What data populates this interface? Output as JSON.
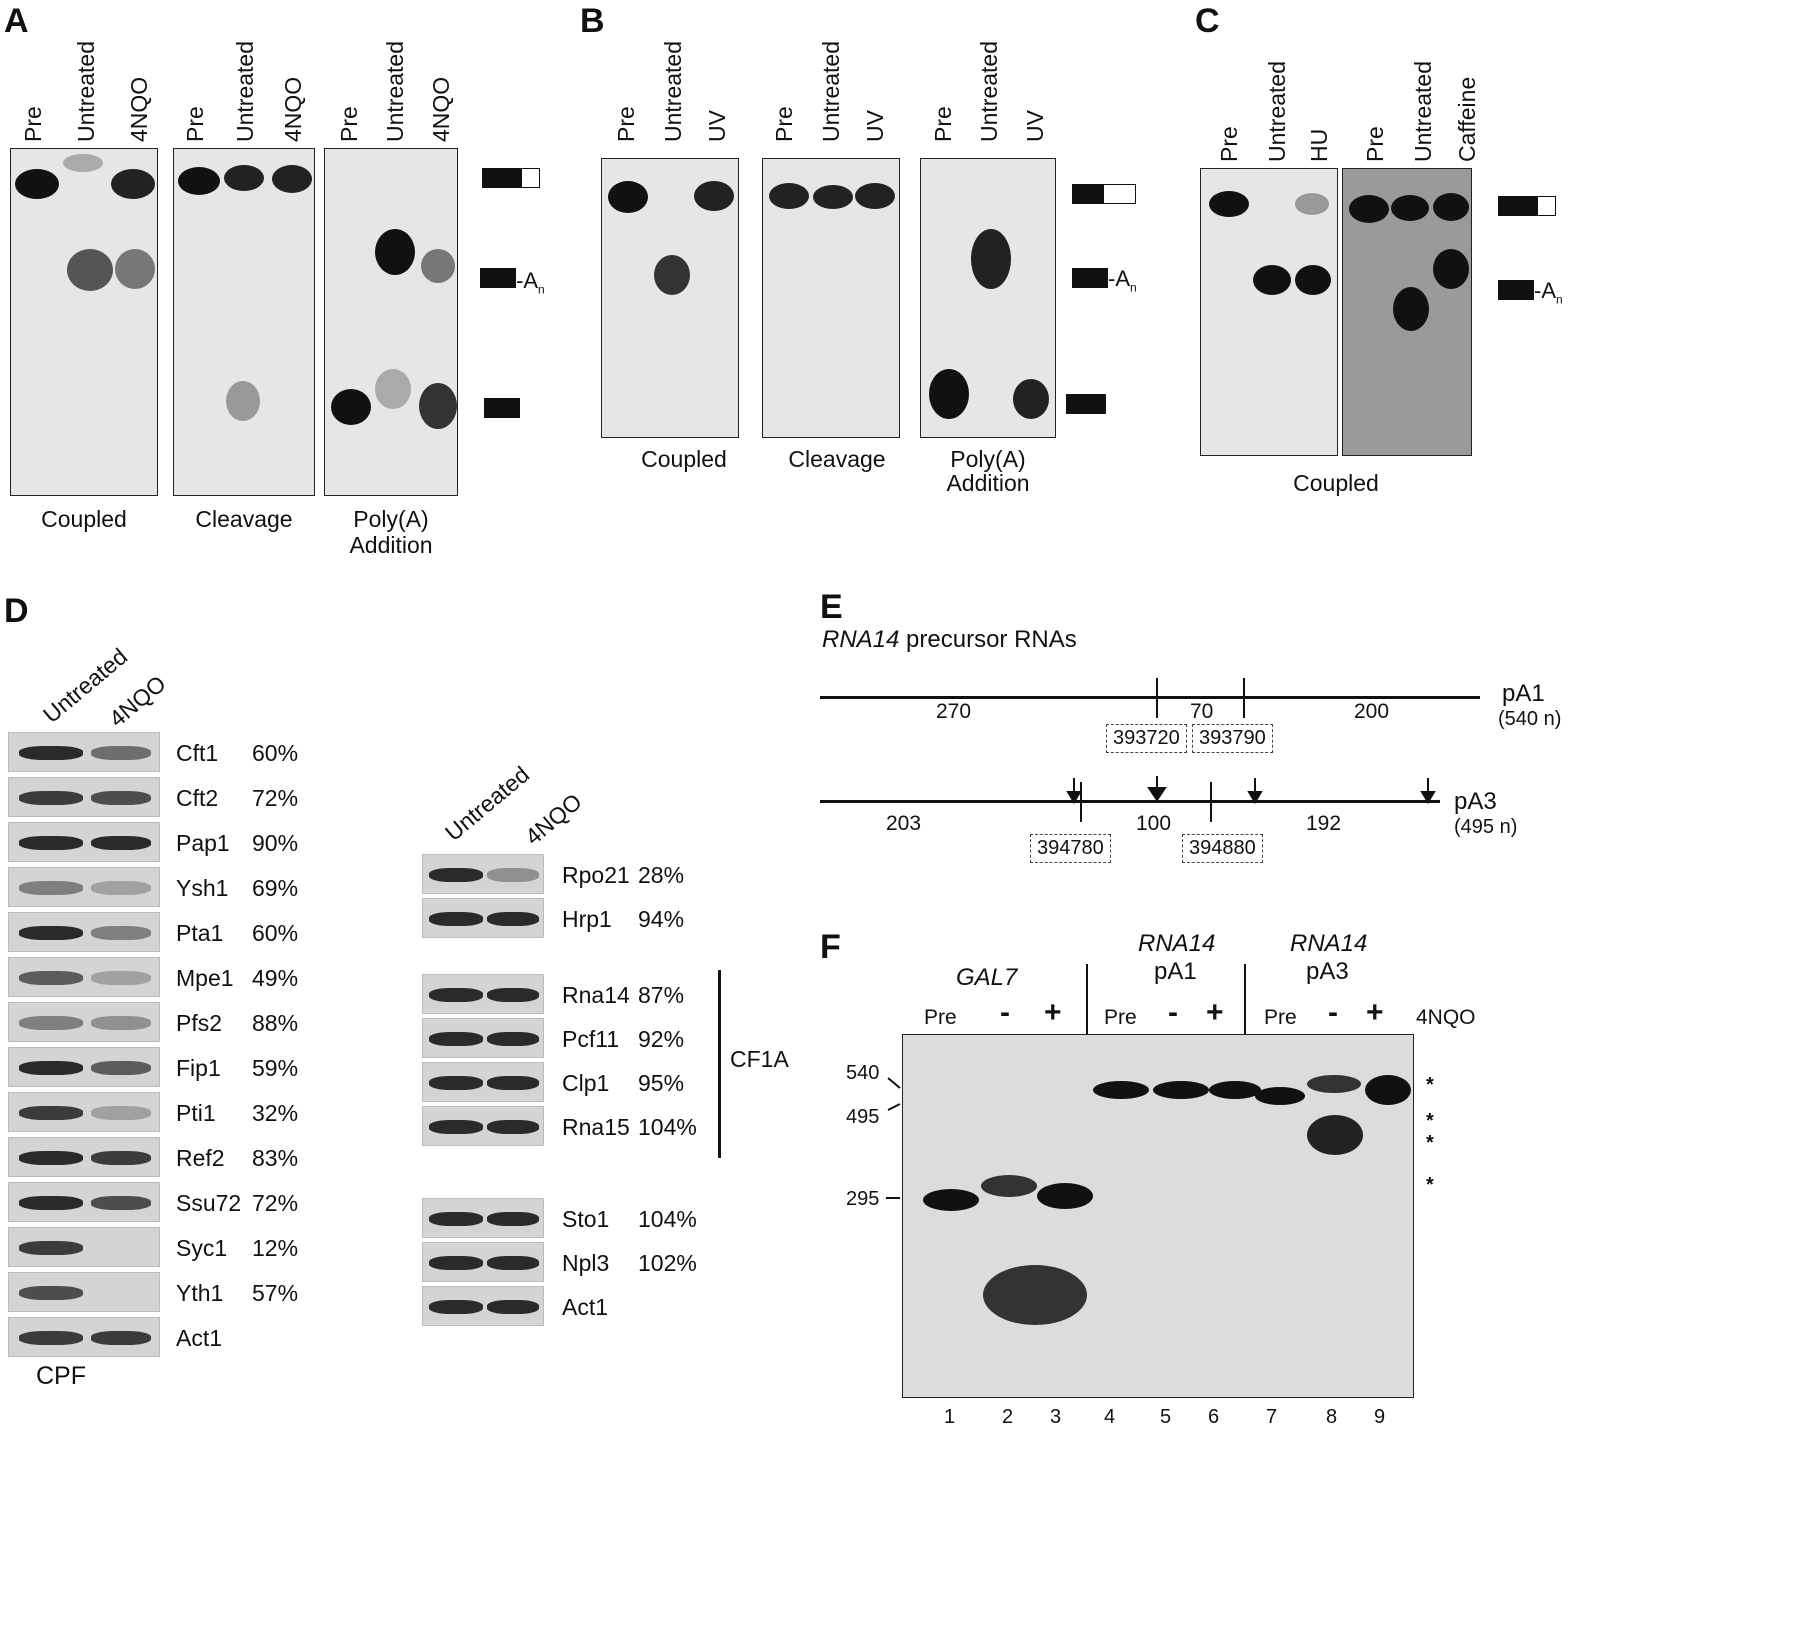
{
  "panel_labels": {
    "a": "A",
    "b": "B",
    "c": "C",
    "d": "D",
    "e": "E",
    "f": "F"
  },
  "panel_a": {
    "gels": [
      {
        "lanes": [
          "Pre",
          "Untreated",
          "4NQO"
        ],
        "caption": "Coupled"
      },
      {
        "lanes": [
          "Pre",
          "Untreated",
          "4NQO"
        ],
        "caption": "Cleavage"
      },
      {
        "lanes": [
          "Pre",
          "Untreated",
          "4NQO"
        ],
        "caption": "Poly(A)",
        "caption2": "Addition"
      }
    ],
    "marker_an": "A",
    "marker_n": "n"
  },
  "panel_b": {
    "gels": [
      {
        "lanes": [
          "Pre",
          "Untreated",
          "UV"
        ],
        "caption": "Coupled"
      },
      {
        "lanes": [
          "Pre",
          "Untreated",
          "UV"
        ],
        "caption": "Cleavage"
      },
      {
        "lanes": [
          "Pre",
          "Untreated",
          "UV"
        ],
        "caption": "Poly(A)",
        "caption2": "Addition"
      }
    ]
  },
  "panel_c": {
    "gels": [
      {
        "lanes": [
          "Pre",
          "Untreated",
          "HU"
        ]
      },
      {
        "lanes": [
          "Pre",
          "Untreated",
          "Caffeine"
        ]
      }
    ],
    "caption": "Coupled"
  },
  "panel_d": {
    "left_header": [
      "Untreated",
      "4NQO"
    ],
    "left_proteins": [
      {
        "name": "Cft1",
        "pct": "60%"
      },
      {
        "name": "Cft2",
        "pct": "72%"
      },
      {
        "name": "Pap1",
        "pct": "90%"
      },
      {
        "name": "Ysh1",
        "pct": "69%"
      },
      {
        "name": "Pta1",
        "pct": "60%"
      },
      {
        "name": "Mpe1",
        "pct": "49%"
      },
      {
        "name": "Pfs2",
        "pct": "88%"
      },
      {
        "name": "Fip1",
        "pct": "59%"
      },
      {
        "name": "Pti1",
        "pct": "32%"
      },
      {
        "name": "Ref2",
        "pct": "83%"
      },
      {
        "name": "Ssu72",
        "pct": "72%"
      },
      {
        "name": "Syc1",
        "pct": "12%"
      },
      {
        "name": "Yth1",
        "pct": "57%"
      },
      {
        "name": "Act1",
        "pct": ""
      }
    ],
    "left_group": "CPF",
    "right_header": [
      "Untreated",
      "4NQO"
    ],
    "right_proteins_1": [
      {
        "name": "Rpo21",
        "pct": "28%"
      },
      {
        "name": "Hrp1",
        "pct": "94%"
      }
    ],
    "right_proteins_2": [
      {
        "name": "Rna14",
        "pct": "87%"
      },
      {
        "name": "Pcf11",
        "pct": "92%"
      },
      {
        "name": "Clp1",
        "pct": "95%"
      },
      {
        "name": "Rna15",
        "pct": "104%"
      }
    ],
    "right_group_2": "CF1A",
    "right_proteins_3": [
      {
        "name": "Sto1",
        "pct": "104%"
      },
      {
        "name": "Npl3",
        "pct": "102%"
      },
      {
        "name": "Act1",
        "pct": ""
      }
    ]
  },
  "panel_e": {
    "title_italic": "RNA14",
    "title_rest": " precursor RNAs",
    "pa1": {
      "label": "pA1",
      "size": "(540 n)",
      "seg1": "270",
      "seg2": "70",
      "seg3": "200",
      "pos1": "393720",
      "pos2": "393790"
    },
    "pa3": {
      "label": "pA3",
      "size": "(495 n)",
      "seg1": "203",
      "seg2": "100",
      "seg3": "192",
      "pos1": "394780",
      "pos2": "394880"
    }
  },
  "panel_f": {
    "groups": [
      {
        "title_italic": "GAL7",
        "title2": ""
      },
      {
        "title_italic": "RNA14",
        "title2": "pA1"
      },
      {
        "title_italic": "RNA14",
        "title2": "pA3"
      }
    ],
    "lane_tags": [
      "Pre",
      "-",
      "+",
      "Pre",
      "-",
      "+",
      "Pre",
      "-",
      "+"
    ],
    "treatment": "4NQO",
    "markers": [
      "540",
      "495",
      "295"
    ],
    "lane_numbers": [
      "1",
      "2",
      "3",
      "4",
      "5",
      "6",
      "7",
      "8",
      "9"
    ],
    "stars": [
      "*",
      "*",
      "*",
      "*"
    ]
  }
}
